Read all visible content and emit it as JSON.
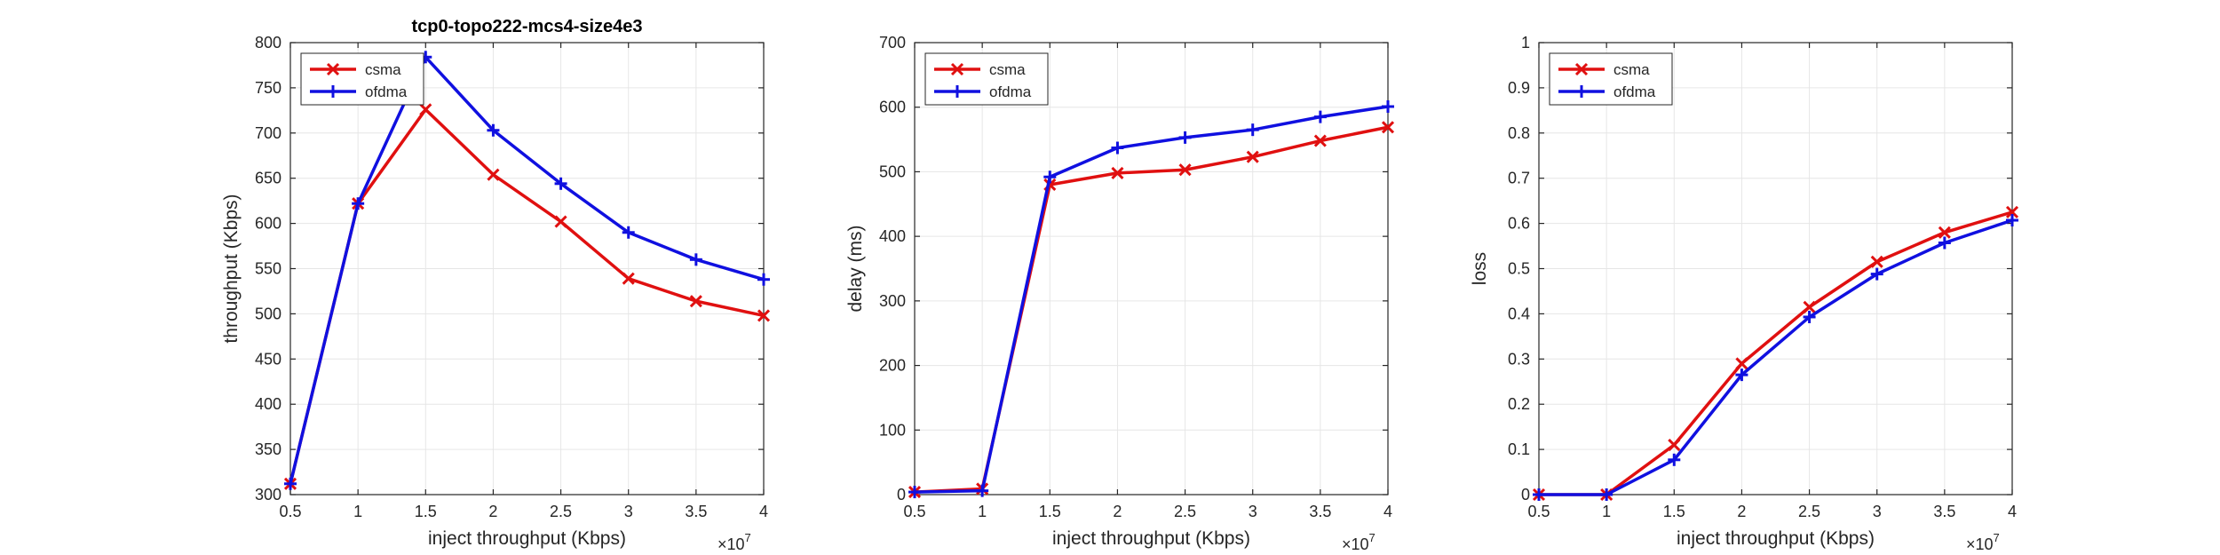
{
  "chart_data": [
    {
      "type": "line",
      "title": "tcp0-topo222-mcs4-size4e3",
      "xlabel": "inject throughput (Kbps)",
      "ylabel": "throughput (Kbps)",
      "x_exponent_label": "×10",
      "x_exponent": "7",
      "x": [
        0.5,
        1,
        1.5,
        2,
        2.5,
        3,
        3.5,
        4
      ],
      "x_ticks": [
        "0.5",
        "1",
        "1.5",
        "2",
        "2.5",
        "3",
        "3.5",
        "4"
      ],
      "xlim": [
        0.5,
        4
      ],
      "ylim": [
        300,
        800
      ],
      "y_ticks": [
        300,
        350,
        400,
        450,
        500,
        550,
        600,
        650,
        700,
        750,
        800
      ],
      "grid": true,
      "legend_position": "top-left",
      "series": [
        {
          "name": "csma",
          "color": "#e01010",
          "marker": "x",
          "values": [
            312,
            622,
            726,
            654,
            602,
            539,
            514,
            498
          ]
        },
        {
          "name": "ofdma",
          "color": "#1010e0",
          "marker": "+",
          "values": [
            312,
            622,
            784,
            703,
            644,
            590,
            560,
            538
          ]
        }
      ]
    },
    {
      "type": "line",
      "title": "",
      "xlabel": "inject throughput (Kbps)",
      "ylabel": "delay (ms)",
      "x_exponent_label": "×10",
      "x_exponent": "7",
      "x": [
        0.5,
        1,
        1.5,
        2,
        2.5,
        3,
        3.5,
        4
      ],
      "x_ticks": [
        "0.5",
        "1",
        "1.5",
        "2",
        "2.5",
        "3",
        "3.5",
        "4"
      ],
      "xlim": [
        0.5,
        4
      ],
      "ylim": [
        0,
        700
      ],
      "y_ticks": [
        0,
        100,
        200,
        300,
        400,
        500,
        600,
        700
      ],
      "grid": true,
      "legend_position": "top-left",
      "series": [
        {
          "name": "csma",
          "color": "#e01010",
          "marker": "x",
          "values": [
            4,
            9,
            480,
            498,
            503,
            523,
            548,
            569
          ]
        },
        {
          "name": "ofdma",
          "color": "#1010e0",
          "marker": "+",
          "values": [
            4,
            6,
            492,
            537,
            553,
            565,
            585,
            601
          ]
        }
      ]
    },
    {
      "type": "line",
      "title": "",
      "xlabel": "inject throughput (Kbps)",
      "ylabel": "loss",
      "x_exponent_label": "×10",
      "x_exponent": "7",
      "x": [
        0.5,
        1,
        1.5,
        2,
        2.5,
        3,
        3.5,
        4
      ],
      "x_ticks": [
        "0.5",
        "1",
        "1.5",
        "2",
        "2.5",
        "3",
        "3.5",
        "4"
      ],
      "xlim": [
        0.5,
        4
      ],
      "ylim": [
        0,
        1
      ],
      "y_ticks": [
        0,
        0.1,
        0.2,
        0.3,
        0.4,
        0.5,
        0.6,
        0.7,
        0.8,
        0.9,
        1
      ],
      "y_tick_labels": [
        "0",
        "0.1",
        "0.2",
        "0.3",
        "0.4",
        "0.5",
        "0.6",
        "0.7",
        "0.8",
        "0.9",
        "1"
      ],
      "grid": true,
      "legend_position": "top-left",
      "series": [
        {
          "name": "csma",
          "color": "#e01010",
          "marker": "x",
          "values": [
            0,
            0,
            0.11,
            0.29,
            0.415,
            0.515,
            0.58,
            0.625
          ]
        },
        {
          "name": "ofdma",
          "color": "#1010e0",
          "marker": "+",
          "values": [
            0,
            0,
            0.077,
            0.265,
            0.393,
            0.488,
            0.557,
            0.607
          ]
        }
      ]
    }
  ]
}
